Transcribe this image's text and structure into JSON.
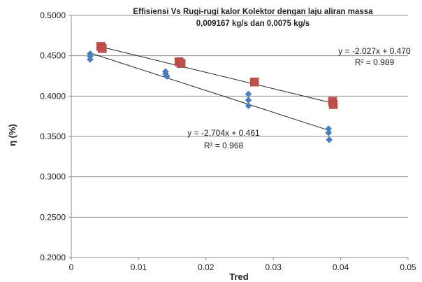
{
  "chart_data": {
    "type": "scatter",
    "title_lines": [
      "Effisiensi Vs Rugi-rugi kalor Kolektor dengan laju aliran massa",
      "0,009167 kg/s dan 0,0075 kg/s"
    ],
    "xlabel": "Tred",
    "ylabel": "η (%)",
    "xlim": [
      0,
      0.05
    ],
    "ylim": [
      0.2,
      0.5
    ],
    "x_ticks": [
      "0",
      "0.01",
      "0.02",
      "0.03",
      "0.04",
      "0.05"
    ],
    "y_ticks": [
      "0.2000",
      "0.2500",
      "0.3000",
      "0.3500",
      "0.4000",
      "0.4500",
      "0.5000"
    ],
    "grid": "horizontal",
    "series": [
      {
        "marker": "diamond",
        "color": "#4a7ebf",
        "points": [
          [
            0.0028,
            0.4525
          ],
          [
            0.0028,
            0.4495
          ],
          [
            0.0028,
            0.4455
          ],
          [
            0.014,
            0.4305
          ],
          [
            0.014,
            0.4275
          ],
          [
            0.0142,
            0.4245
          ],
          [
            0.0263,
            0.4025
          ],
          [
            0.0263,
            0.395
          ],
          [
            0.0263,
            0.388
          ],
          [
            0.0382,
            0.3595
          ],
          [
            0.0382,
            0.3545
          ],
          [
            0.0383,
            0.346
          ]
        ],
        "trendline": {
          "slope": -2.704,
          "intercept": 0.461,
          "x_range": [
            0.0028,
            0.0385
          ]
        },
        "equation": "y = -2.704x + 0.461",
        "r2": "R² = 0.968"
      },
      {
        "marker": "square",
        "color": "#c0504d",
        "points": [
          [
            0.0044,
            0.4615
          ],
          [
            0.0046,
            0.459
          ],
          [
            0.016,
            0.4425
          ],
          [
            0.0163,
            0.4405
          ],
          [
            0.0272,
            0.4175
          ],
          [
            0.0388,
            0.3935
          ],
          [
            0.0389,
            0.3895
          ]
        ],
        "trendline": {
          "slope": -2.027,
          "intercept": 0.47,
          "x_range": [
            0.0044,
            0.0392
          ]
        },
        "equation": "y = -2.027x + 0.470",
        "r2": "R² = 0.989"
      }
    ]
  }
}
